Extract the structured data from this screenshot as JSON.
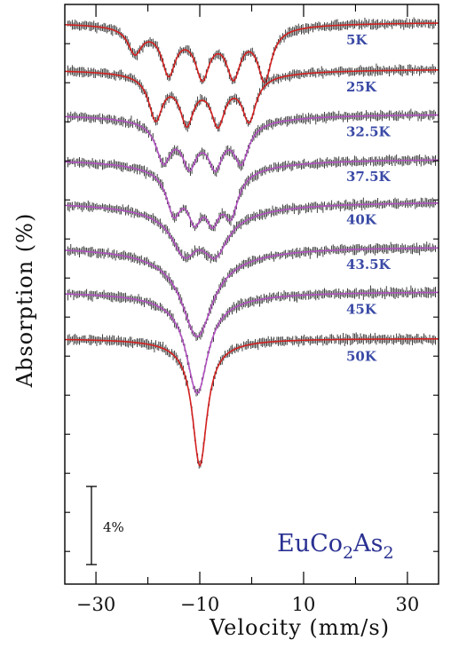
{
  "chart_data": {
    "type": "line",
    "xlabel": "Velocity (mm/s)",
    "ylabel": "Absorption (%)",
    "xlim": [
      -36,
      36
    ],
    "x_ticks": [
      -30,
      -10,
      10,
      30
    ],
    "x_tick_labels": [
      "−30",
      "−10",
      "10",
      "30"
    ],
    "compound_label": {
      "base": "EuCo",
      "sub1": "2",
      "mid": "As",
      "sub2": "2"
    },
    "scale_bar": {
      "label": "4%",
      "value_percent": 4
    },
    "grid": false,
    "series": [
      {
        "name": "5K",
        "fit_color": "#d42020",
        "baseline_percent": 0,
        "lines": [
          {
            "center": -22.5,
            "depth": 1.3,
            "width": 1.6
          },
          {
            "center": -16.0,
            "depth": 2.2,
            "width": 1.6
          },
          {
            "center": -9.5,
            "depth": 2.2,
            "width": 1.6
          },
          {
            "center": -3.5,
            "depth": 2.2,
            "width": 1.6
          },
          {
            "center": 2.5,
            "depth": 2.6,
            "width": 1.6
          },
          {
            "center": -8.0,
            "depth": 0.5,
            "width": 12.0
          }
        ]
      },
      {
        "name": "25K",
        "fit_color": "#d42020",
        "baseline_percent": -2.4,
        "lines": [
          {
            "center": -18.5,
            "depth": 2.2,
            "width": 1.6
          },
          {
            "center": -12.5,
            "depth": 2.2,
            "width": 1.6
          },
          {
            "center": -6.5,
            "depth": 2.2,
            "width": 1.6
          },
          {
            "center": -0.5,
            "depth": 2.2,
            "width": 1.6
          },
          {
            "center": -8.0,
            "depth": 0.5,
            "width": 12.0
          }
        ]
      },
      {
        "name": "32.5K",
        "fit_color": "#b050c0",
        "baseline_percent": -4.7,
        "lines": [
          {
            "center": -17.0,
            "depth": 1.9,
            "width": 1.7
          },
          {
            "center": -12.0,
            "depth": 1.9,
            "width": 1.7
          },
          {
            "center": -7.0,
            "depth": 1.9,
            "width": 1.7
          },
          {
            "center": -2.0,
            "depth": 1.9,
            "width": 1.7
          },
          {
            "center": -9.0,
            "depth": 0.6,
            "width": 12.0
          }
        ]
      },
      {
        "name": "37.5K",
        "fit_color": "#b050c0",
        "baseline_percent": -7.0,
        "lines": [
          {
            "center": -15.0,
            "depth": 2.0,
            "width": 1.7
          },
          {
            "center": -11.0,
            "depth": 2.0,
            "width": 1.7
          },
          {
            "center": -7.5,
            "depth": 2.0,
            "width": 1.7
          },
          {
            "center": -4.0,
            "depth": 2.0,
            "width": 1.7
          },
          {
            "center": -9.0,
            "depth": 0.7,
            "width": 12.0
          }
        ]
      },
      {
        "name": "40K",
        "fit_color": "#b050c0",
        "baseline_percent": -9.2,
        "lines": [
          {
            "center": -13.0,
            "depth": 1.8,
            "width": 2.8
          },
          {
            "center": -7.0,
            "depth": 1.8,
            "width": 2.8
          },
          {
            "center": -9.5,
            "depth": 0.8,
            "width": 12.0
          }
        ]
      },
      {
        "name": "43.5K",
        "fit_color": "#b050c0",
        "baseline_percent": -11.5,
        "lines": [
          {
            "center": -10.5,
            "depth": 4.0,
            "width": 3.5
          },
          {
            "center": -10.0,
            "depth": 0.6,
            "width": 12.0
          }
        ]
      },
      {
        "name": "45K",
        "fit_color": "#b050c0",
        "baseline_percent": -13.8,
        "lines": [
          {
            "center": -10.5,
            "depth": 4.8,
            "width": 2.5
          },
          {
            "center": -10.0,
            "depth": 0.4,
            "width": 12.0
          }
        ]
      },
      {
        "name": "50K",
        "fit_color": "#d42020",
        "baseline_percent": -16.2,
        "lines": [
          {
            "center": -10.0,
            "depth": 6.2,
            "width": 1.7
          },
          {
            "center": -10.0,
            "depth": 0.3,
            "width": 8.0
          }
        ]
      }
    ]
  }
}
